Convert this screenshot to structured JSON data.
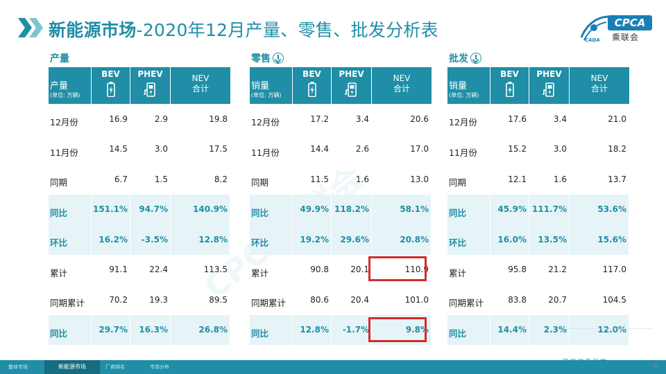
{
  "title": {
    "bold": "新能源市场",
    "rest": "-2020年12月产量、零售、批发分析表"
  },
  "logo": {
    "top": "CPCA",
    "bottom": "乘联会",
    "small": "CADA"
  },
  "colors": {
    "accent": "#1f8ea6",
    "highlight_border": "#d52a2a",
    "footer": "#1f8ea6"
  },
  "headers": {
    "bev": "BEV",
    "phev": "PHEV",
    "nev_line1": "NEV",
    "nev_line2": "合计",
    "unit": "(单位: 万辆)"
  },
  "sections": [
    {
      "label": "产量",
      "has_icon": false,
      "first_header": "产量",
      "rows": [
        {
          "label": "12月份",
          "bev": "16.9",
          "phev": "2.9",
          "nev": "19.8"
        },
        {
          "label": "11月份",
          "bev": "14.5",
          "phev": "3.0",
          "nev": "17.5"
        },
        {
          "label": "同期",
          "bev": "6.7",
          "phev": "1.5",
          "nev": "8.2"
        },
        {
          "label": "同比",
          "bev": "151.1%",
          "phev": "94.7%",
          "nev": "140.9%"
        },
        {
          "label": "环比",
          "bev": "16.2%",
          "phev": "-3.5%",
          "nev": "12.8%"
        },
        {
          "label": "累计",
          "bev": "91.1",
          "phev": "22.4",
          "nev": "113.5"
        },
        {
          "label": "同期累计",
          "bev": "70.2",
          "phev": "19.3",
          "nev": "89.5"
        },
        {
          "label": "同比",
          "bev": "29.7%",
          "phev": "16.3%",
          "nev": "26.8%"
        }
      ]
    },
    {
      "label": "零售",
      "has_icon": true,
      "icon": "down-arrow-circle-icon",
      "first_header": "销量",
      "rows": [
        {
          "label": "12月份",
          "bev": "17.2",
          "phev": "3.4",
          "nev": "20.6"
        },
        {
          "label": "11月份",
          "bev": "14.4",
          "phev": "2.6",
          "nev": "17.0"
        },
        {
          "label": "同期",
          "bev": "11.5",
          "phev": "1.6",
          "nev": "13.0"
        },
        {
          "label": "同比",
          "bev": "49.9%",
          "phev": "118.2%",
          "nev": "58.1%"
        },
        {
          "label": "环比",
          "bev": "19.2%",
          "phev": "29.6%",
          "nev": "20.8%"
        },
        {
          "label": "累计",
          "bev": "90.8",
          "phev": "20.1",
          "nev": "110.9"
        },
        {
          "label": "同期累计",
          "bev": "80.6",
          "phev": "20.4",
          "nev": "101.0"
        },
        {
          "label": "同比",
          "bev": "12.8%",
          "phev": "-1.7%",
          "nev": "9.8%"
        }
      ]
    },
    {
      "label": "批发",
      "has_icon": true,
      "icon": "down-arrow-circle-icon",
      "first_header": "销量",
      "rows": [
        {
          "label": "12月份",
          "bev": "17.6",
          "phev": "3.4",
          "nev": "21.0"
        },
        {
          "label": "11月份",
          "bev": "15.2",
          "phev": "3.0",
          "nev": "18.2"
        },
        {
          "label": "同期",
          "bev": "12.1",
          "phev": "1.6",
          "nev": "13.7"
        },
        {
          "label": "同比",
          "bev": "45.9%",
          "phev": "111.7%",
          "nev": "53.6%"
        },
        {
          "label": "环比",
          "bev": "16.0%",
          "phev": "13.5%",
          "nev": "15.6%"
        },
        {
          "label": "累计",
          "bev": "95.8",
          "phev": "21.2",
          "nev": "117.0"
        },
        {
          "label": "同期累计",
          "bev": "83.8",
          "phev": "20.7",
          "nev": "104.5"
        },
        {
          "label": "同比",
          "bev": "14.4%",
          "phev": "2.3%",
          "nev": "12.0%"
        }
      ]
    }
  ],
  "footer": {
    "tabs": [
      "整体市场",
      "新能源市场",
      "厂商排名",
      "市场分布"
    ],
    "active_tab": "新能源市场",
    "right_text": "月度信息发布",
    "page_number": "6"
  },
  "watermark": "CPCA乘联会"
}
